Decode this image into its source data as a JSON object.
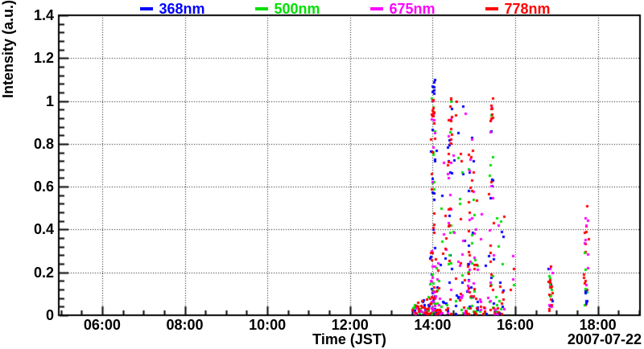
{
  "chart_data": {
    "type": "scatter",
    "title": "",
    "xlabel": "Time (JST)",
    "ylabel": "Intensity (a.u.)",
    "date_label": "2007-07-22",
    "legend_position": "top",
    "grid": {
      "shown": true,
      "style": "dotted",
      "color": "#111111"
    },
    "frame_color": "#000000",
    "background_color": "#ffffff",
    "x_axis": {
      "unit": "time (JST), hours",
      "range_hours": [
        4.95,
        19.02
      ],
      "major_tick_every_hours": 2,
      "minor_tick_every_minutes": 30,
      "tick_hours": [
        6,
        8,
        10,
        12,
        14,
        16,
        18
      ],
      "tick_labels": [
        "06:00",
        "08:00",
        "10:00",
        "12:00",
        "14:00",
        "16:00",
        "18:00"
      ]
    },
    "y_axis": {
      "range": [
        0,
        1.4
      ],
      "major_tick_step": 0.2,
      "minor_ticks_per_major": 5,
      "tick_values": [
        0,
        0.2,
        0.4,
        0.6,
        0.8,
        1.0,
        1.2,
        1.4
      ],
      "tick_labels": [
        "0",
        "0.2",
        "0.4",
        "0.6",
        "0.8",
        "1",
        "1.2",
        "1.4"
      ]
    },
    "series": [
      {
        "name": "368nm",
        "color": "#0000ff",
        "marker": "small-square"
      },
      {
        "name": "500nm",
        "color": "#00e000",
        "marker": "small-square"
      },
      {
        "name": "675nm",
        "color": "#ff00ff",
        "marker": "small-square"
      },
      {
        "name": "778nm",
        "color": "#ff0000",
        "marker": "small-square"
      }
    ],
    "marker_size_px": 3,
    "seed": 20070722,
    "clusters_note": "Scatter data summarized as clusters: t = time range in decimal hours JST, v = intensity range (a.u.), counts = points per wavelength series, bias = vertical distribution",
    "clusters": [
      {
        "t": [
          13.5,
          13.61
        ],
        "v": [
          0.004,
          0.05
        ],
        "bias": "uniform",
        "counts": {
          "368nm": 3,
          "500nm": 3,
          "675nm": 3,
          "778nm": 4
        }
      },
      {
        "t": [
          13.62,
          14.18
        ],
        "v": [
          0.004,
          0.09
        ],
        "bias": "low",
        "counts": {
          "368nm": 22,
          "500nm": 20,
          "675nm": 20,
          "778nm": 28
        }
      },
      {
        "t": [
          13.9,
          14.15
        ],
        "v": [
          0.08,
          0.3
        ],
        "bias": "low",
        "counts": {
          "368nm": 6,
          "500nm": 6,
          "675nm": 8,
          "778nm": 10
        }
      },
      {
        "t": [
          13.96,
          14.06
        ],
        "v": [
          0.08,
          0.95
        ],
        "bias": "uniform",
        "counts": {
          "368nm": 13,
          "500nm": 9,
          "675nm": 11,
          "778nm": 13
        }
      },
      {
        "t": [
          13.97,
          14.05
        ],
        "v": [
          0.9,
          1.02
        ],
        "bias": "uniform",
        "counts": {
          "500nm": 3,
          "675nm": 3,
          "778nm": 10
        }
      },
      {
        "t": [
          13.99,
          14.05
        ],
        "v": [
          1.02,
          1.1
        ],
        "bias": "uniform",
        "counts": {
          "368nm": 7
        }
      },
      {
        "t": [
          14.08,
          14.35
        ],
        "v": [
          0.1,
          0.8
        ],
        "bias": "uniform",
        "counts": {
          "368nm": 4,
          "500nm": 3,
          "675nm": 3,
          "778nm": 4
        }
      },
      {
        "t": [
          14.37,
          14.46
        ],
        "v": [
          0.1,
          0.88
        ],
        "bias": "uniform",
        "counts": {
          "368nm": 8,
          "500nm": 6,
          "675nm": 8,
          "778nm": 8
        }
      },
      {
        "t": [
          14.38,
          14.46
        ],
        "v": [
          0.75,
          1.03
        ],
        "bias": "uniform",
        "counts": {
          "368nm": 3,
          "500nm": 2,
          "675nm": 2,
          "778nm": 10
        }
      },
      {
        "t": [
          14.48,
          14.82
        ],
        "v": [
          0.15,
          1.04
        ],
        "bias": "uniform",
        "counts": {
          "368nm": 5,
          "500nm": 5,
          "675nm": 5,
          "778nm": 6
        }
      },
      {
        "t": [
          14.2,
          15.58
        ],
        "v": [
          0.004,
          0.09
        ],
        "bias": "low",
        "counts": {
          "368nm": 18,
          "500nm": 16,
          "675nm": 18,
          "778nm": 24
        }
      },
      {
        "t": [
          14.55,
          15.05
        ],
        "v": [
          0.08,
          0.3
        ],
        "bias": "low",
        "counts": {
          "368nm": 6,
          "500nm": 6,
          "675nm": 6,
          "778nm": 7
        }
      },
      {
        "t": [
          14.85,
          15.02
        ],
        "v": [
          0.08,
          0.7
        ],
        "bias": "uniform",
        "counts": {
          "368nm": 6,
          "500nm": 7,
          "675nm": 12,
          "778nm": 16
        }
      },
      {
        "t": [
          14.86,
          15.0
        ],
        "v": [
          0.7,
          0.85
        ],
        "bias": "uniform",
        "counts": {
          "368nm": 2,
          "675nm": 3,
          "778nm": 3
        }
      },
      {
        "t": [
          15.05,
          15.82
        ],
        "v": [
          0.2,
          0.62
        ],
        "bias": "uniform",
        "counts": {
          "368nm": 5,
          "500nm": 5,
          "675nm": 5,
          "778nm": 6
        }
      },
      {
        "t": [
          15.37,
          15.47
        ],
        "v": [
          0.1,
          0.9
        ],
        "bias": "uniform",
        "counts": {
          "368nm": 6,
          "500nm": 5,
          "675nm": 6,
          "778nm": 7
        }
      },
      {
        "t": [
          15.39,
          15.46
        ],
        "v": [
          0.9,
          1.02
        ],
        "bias": "uniform",
        "counts": {
          "500nm": 2,
          "675nm": 2,
          "778nm": 8
        }
      },
      {
        "t": [
          15.5,
          15.73
        ],
        "v": [
          0.004,
          0.16
        ],
        "bias": "low",
        "counts": {
          "368nm": 5,
          "500nm": 4,
          "675nm": 4,
          "778nm": 7
        }
      },
      {
        "t": [
          15.86,
          15.96
        ],
        "v": [
          0.1,
          0.31
        ],
        "bias": "uniform",
        "counts": {
          "500nm": 1,
          "675nm": 2,
          "778nm": 2
        }
      },
      {
        "t": [
          16.8,
          16.9
        ],
        "v": [
          0.004,
          0.235
        ],
        "bias": "uniform",
        "counts": {
          "368nm": 6,
          "500nm": 7,
          "675nm": 5,
          "778nm": 12
        }
      },
      {
        "t": [
          17.66,
          17.77
        ],
        "v": [
          0.02,
          0.56
        ],
        "bias": "uniform",
        "counts": {
          "778nm": 14
        }
      },
      {
        "t": [
          17.67,
          17.76
        ],
        "v": [
          0.05,
          0.5
        ],
        "bias": "uniform",
        "counts": {
          "675nm": 9
        }
      },
      {
        "t": [
          17.67,
          17.76
        ],
        "v": [
          0.02,
          0.3
        ],
        "bias": "uniform",
        "counts": {
          "500nm": 5
        }
      },
      {
        "t": [
          17.67,
          17.76
        ],
        "v": [
          0.004,
          0.12
        ],
        "bias": "uniform",
        "counts": {
          "368nm": 7
        }
      }
    ]
  }
}
